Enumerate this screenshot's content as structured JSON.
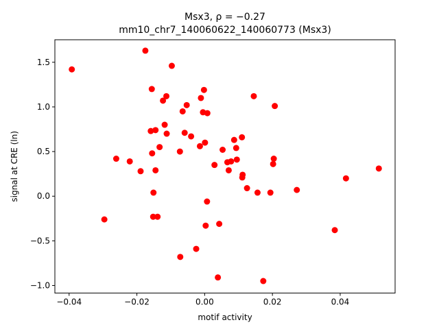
{
  "chart_data": {
    "type": "scatter",
    "title_line1": "Msx3, ρ = −0.27",
    "title_line2": "mm10_chr7_140060622_140060773 (Msx3)",
    "xlabel": "motif activity",
    "ylabel": "signal at CRE (ln)",
    "xlim": [
      -0.0442,
      0.0562
    ],
    "ylim": [
      -1.085,
      1.752
    ],
    "xticks": [
      -0.04,
      -0.02,
      0.0,
      0.02,
      0.04
    ],
    "xtick_labels": [
      "−0.04",
      "−0.02",
      "0.00",
      "0.02",
      "0.04"
    ],
    "yticks": [
      -1.0,
      -0.5,
      0.0,
      0.5,
      1.0,
      1.5
    ],
    "ytick_labels": [
      "−1.0",
      "−0.5",
      "0.0",
      "0.5",
      "1.0",
      "1.5"
    ],
    "grid": false,
    "marker_color": "#ff0000",
    "points": [
      {
        "x": -0.0392,
        "y": 1.42
      },
      {
        "x": -0.0175,
        "y": 1.63
      },
      {
        "x": -0.0097,
        "y": 1.46
      },
      {
        "x": -0.0156,
        "y": 1.2
      },
      {
        "x": -0.0002,
        "y": 1.19
      },
      {
        "x": -0.0113,
        "y": 1.12
      },
      {
        "x": -0.0123,
        "y": 1.07
      },
      {
        "x": 0.0145,
        "y": 1.12
      },
      {
        "x": -0.0011,
        "y": 1.1
      },
      {
        "x": -0.0053,
        "y": 1.02
      },
      {
        "x": 0.0207,
        "y": 1.01
      },
      {
        "x": -0.0065,
        "y": 0.95
      },
      {
        "x": -0.0005,
        "y": 0.94
      },
      {
        "x": 0.0008,
        "y": 0.93
      },
      {
        "x": -0.0118,
        "y": 0.8
      },
      {
        "x": -0.0159,
        "y": 0.73
      },
      {
        "x": -0.0145,
        "y": 0.74
      },
      {
        "x": -0.0112,
        "y": 0.7
      },
      {
        "x": -0.0059,
        "y": 0.71
      },
      {
        "x": -0.004,
        "y": 0.67
      },
      {
        "x": 0.011,
        "y": 0.66
      },
      {
        "x": 0.0087,
        "y": 0.63
      },
      {
        "x": 0.0001,
        "y": 0.6
      },
      {
        "x": -0.0133,
        "y": 0.55
      },
      {
        "x": -0.0014,
        "y": 0.56
      },
      {
        "x": 0.0053,
        "y": 0.52
      },
      {
        "x": 0.0093,
        "y": 0.54
      },
      {
        "x": -0.0073,
        "y": 0.5
      },
      {
        "x": -0.0155,
        "y": 0.48
      },
      {
        "x": -0.0261,
        "y": 0.42
      },
      {
        "x": 0.0095,
        "y": 0.41
      },
      {
        "x": 0.0204,
        "y": 0.42
      },
      {
        "x": -0.0221,
        "y": 0.39
      },
      {
        "x": 0.0067,
        "y": 0.38
      },
      {
        "x": 0.0078,
        "y": 0.39
      },
      {
        "x": 0.0202,
        "y": 0.36
      },
      {
        "x": 0.0029,
        "y": 0.35
      },
      {
        "x": 0.0514,
        "y": 0.31
      },
      {
        "x": -0.0189,
        "y": 0.28
      },
      {
        "x": -0.0145,
        "y": 0.29
      },
      {
        "x": 0.0071,
        "y": 0.29
      },
      {
        "x": 0.0112,
        "y": 0.24
      },
      {
        "x": 0.0111,
        "y": 0.21
      },
      {
        "x": 0.0417,
        "y": 0.2
      },
      {
        "x": 0.0125,
        "y": 0.09
      },
      {
        "x": 0.0272,
        "y": 0.07
      },
      {
        "x": -0.0151,
        "y": 0.04
      },
      {
        "x": 0.0156,
        "y": 0.04
      },
      {
        "x": 0.0194,
        "y": 0.04
      },
      {
        "x": 0.0007,
        "y": -0.06
      },
      {
        "x": -0.0152,
        "y": -0.23
      },
      {
        "x": -0.0139,
        "y": -0.23
      },
      {
        "x": -0.0296,
        "y": -0.26
      },
      {
        "x": 0.0043,
        "y": -0.31
      },
      {
        "x": 0.0003,
        "y": -0.33
      },
      {
        "x": 0.0384,
        "y": -0.38
      },
      {
        "x": -0.0025,
        "y": -0.59
      },
      {
        "x": -0.0072,
        "y": -0.68
      },
      {
        "x": 0.0039,
        "y": -0.91
      },
      {
        "x": 0.0173,
        "y": -0.95
      }
    ]
  }
}
